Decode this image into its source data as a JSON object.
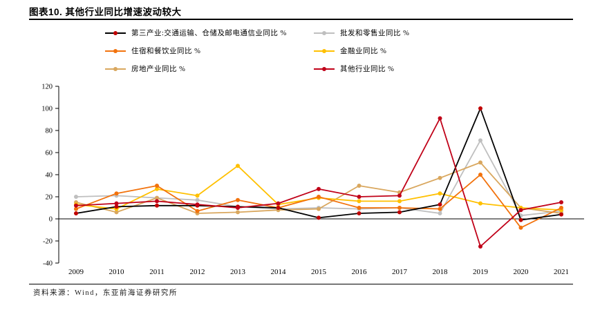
{
  "header": {
    "title": "图表10. 其他行业同比增速波动较大"
  },
  "footer": {
    "source": "资料来源：Wind，东亚前海证券研究所"
  },
  "colors": {
    "axis": "#000000",
    "title_rule": "#000000",
    "background": "#ffffff"
  },
  "chart_data": {
    "type": "line",
    "title": "其他行业同比增速波动较大",
    "x_labels": [
      "2009",
      "2010",
      "2011",
      "2012",
      "2013",
      "2014",
      "2015",
      "2016",
      "2017",
      "2018",
      "2019",
      "2020",
      "2021"
    ],
    "yticks": [
      -40,
      -20,
      0,
      20,
      40,
      60,
      80,
      100,
      120
    ],
    "ylim": [
      -40,
      120
    ],
    "grid": false,
    "legend_position": "top",
    "series": [
      {
        "name": "第三产业:交通运输、仓储及邮电通信业同比 %",
        "color": "#000000",
        "marker_color": "#c00000",
        "values": [
          5,
          11,
          12,
          12,
          11,
          10,
          1,
          5,
          6,
          13,
          100,
          -1,
          4
        ]
      },
      {
        "name": "批发和零售业同比 %",
        "color": "#bfbfbf",
        "marker_color": "#bfbfbf",
        "values": [
          20,
          21,
          19,
          17,
          11,
          9,
          10,
          9,
          10,
          5,
          71,
          3,
          7
        ]
      },
      {
        "name": "住宿和餐饮业同比 %",
        "color": "#f2720c",
        "marker_color": "#f2720c",
        "values": [
          9,
          23,
          30,
          7,
          17,
          10,
          20,
          10,
          10,
          9,
          40,
          -8,
          10
        ]
      },
      {
        "name": "金融业同比 %",
        "color": "#ffc000",
        "marker_color": "#ffc000",
        "values": [
          13,
          9,
          27,
          21,
          48,
          13,
          19,
          16,
          16,
          23,
          14,
          10,
          8
        ]
      },
      {
        "name": "房地产业同比 %",
        "color": "#d9a75e",
        "marker_color": "#d9a75e",
        "values": [
          15,
          6,
          19,
          5,
          6,
          8,
          9,
          30,
          24,
          37,
          51,
          10,
          5
        ]
      },
      {
        "name": "其他行业同比 %",
        "color": "#c00018",
        "marker_color": "#c00018",
        "values": [
          12,
          14,
          16,
          13,
          10,
          14,
          27,
          20,
          21,
          91,
          -25,
          8,
          15
        ]
      }
    ]
  }
}
